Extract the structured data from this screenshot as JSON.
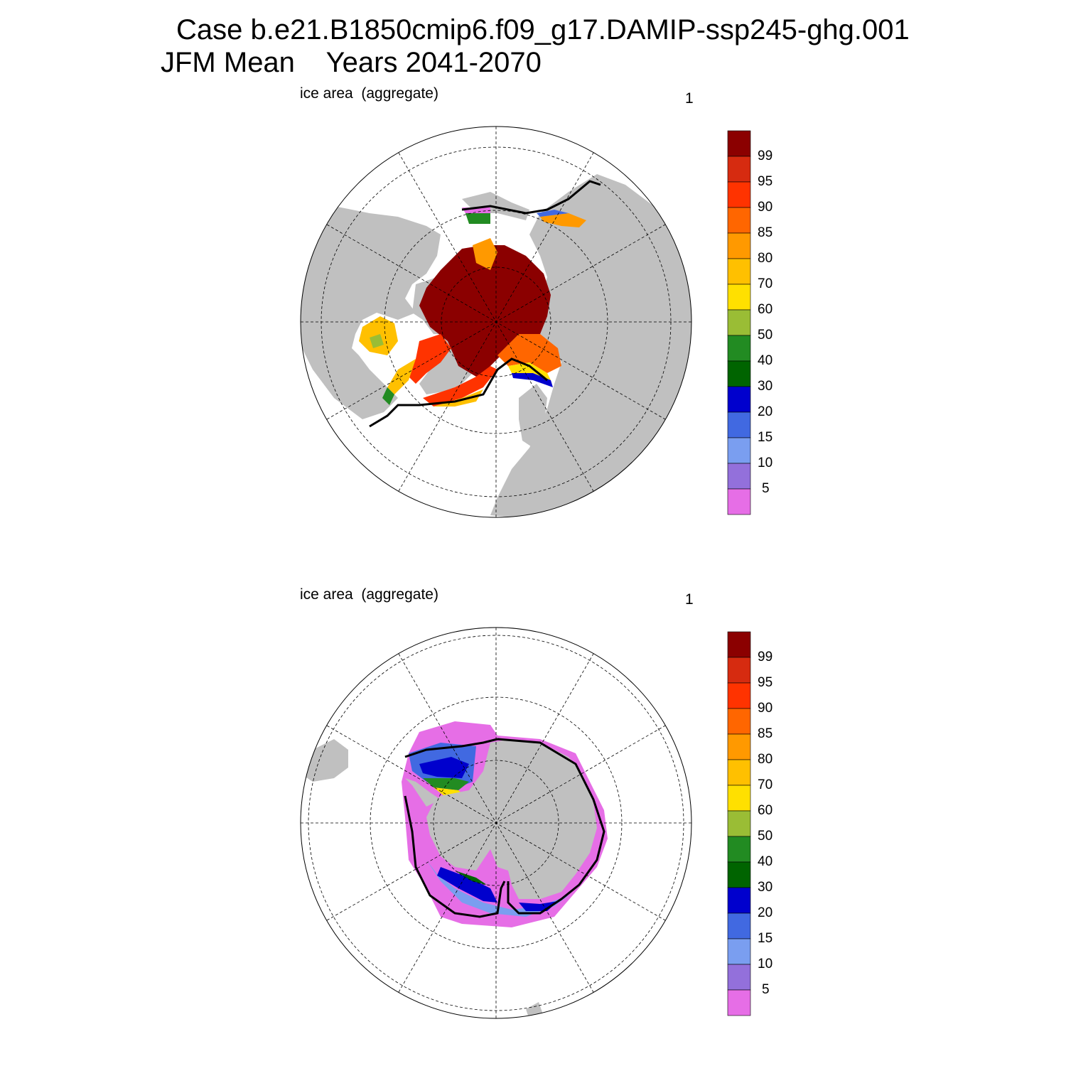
{
  "title": {
    "line1": "Case b.e21.B1850cmip6.f09_g17.DAMIP-ssp245-ghg.001",
    "line2": "JFM Mean    Years 2041-2070"
  },
  "panels": [
    {
      "id": "north",
      "left_label": "ice area  (aggregate)",
      "right_label": "1"
    },
    {
      "id": "south",
      "left_label": "ice area  (aggregate)",
      "right_label": "1"
    }
  ],
  "colorbar": {
    "labels": [
      "99",
      "95",
      "90",
      "85",
      "80",
      "70",
      "60",
      "50",
      "40",
      "30",
      "20",
      "15",
      "10",
      "5"
    ],
    "colors": [
      "#8b0000",
      "#d62b10",
      "#ff3300",
      "#ff6600",
      "#ff9900",
      "#ffc000",
      "#ffe000",
      "#9abd35",
      "#228b22",
      "#006400",
      "#0000cd",
      "#4169e1",
      "#7a9ef0",
      "#9370db",
      "#e66ee6"
    ]
  },
  "map_colors": {
    "land": "#c0c0c0",
    "ocean": "#ffffff",
    "outline": "#000000"
  }
}
